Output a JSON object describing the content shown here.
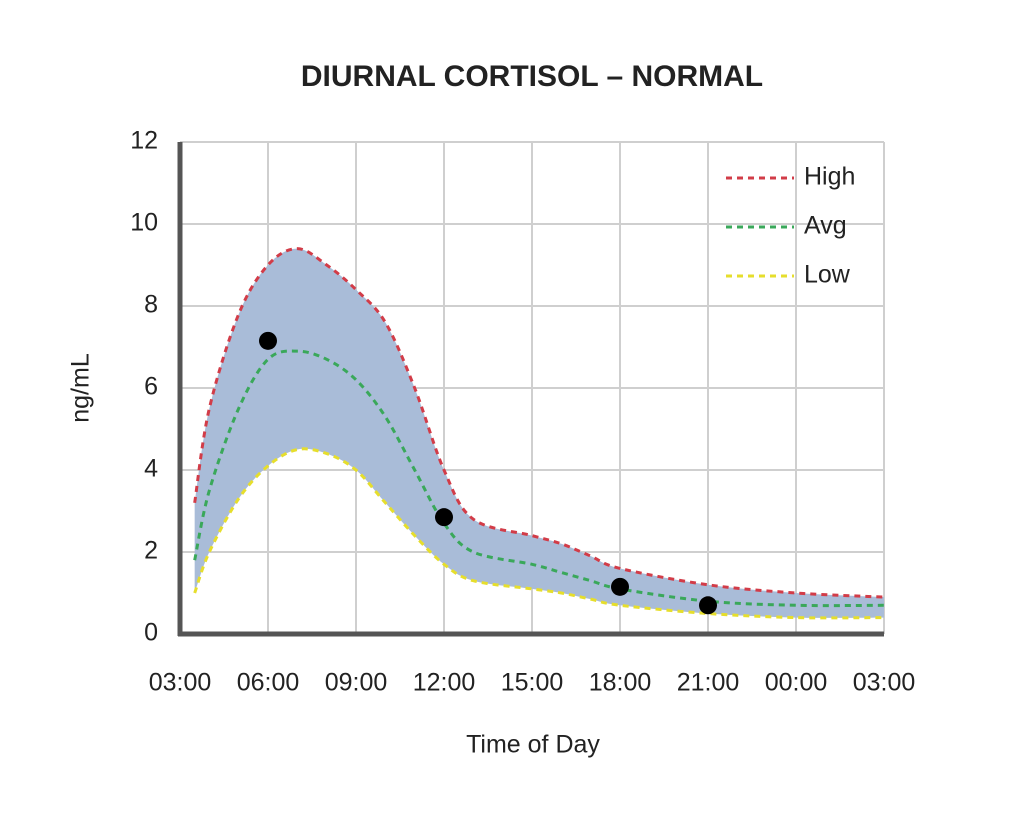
{
  "chart_data": {
    "type": "line",
    "title": "DIURNAL CORTISOL – NORMAL",
    "x_label": "Time of Day",
    "y_label": "ng/mL",
    "x": [
      3.5,
      4,
      5,
      6,
      7,
      8,
      9,
      10,
      11,
      12,
      13,
      15,
      16,
      17,
      18,
      21,
      24,
      27
    ],
    "series": [
      {
        "name": "High",
        "color": "#d23c48",
        "values": [
          3.2,
          5.5,
          7.8,
          9.0,
          9.4,
          9.0,
          8.4,
          7.6,
          6.0,
          4.0,
          2.8,
          2.4,
          2.2,
          1.9,
          1.6,
          1.2,
          1.0,
          0.9
        ]
      },
      {
        "name": "Avg",
        "color": "#3aa85a",
        "values": [
          1.8,
          3.5,
          5.5,
          6.7,
          6.9,
          6.7,
          6.2,
          5.3,
          4.0,
          2.7,
          2.0,
          1.7,
          1.5,
          1.3,
          1.1,
          0.8,
          0.7,
          0.7
        ]
      },
      {
        "name": "Low",
        "color": "#e6de2c",
        "values": [
          1.0,
          2.0,
          3.3,
          4.1,
          4.5,
          4.4,
          4.0,
          3.2,
          2.4,
          1.7,
          1.3,
          1.1,
          1.0,
          0.85,
          0.7,
          0.5,
          0.4,
          0.4
        ]
      }
    ],
    "band_color": "#a9bcd8",
    "points": {
      "x": [
        6,
        12,
        18,
        21
      ],
      "values": [
        7.15,
        2.85,
        1.15,
        0.7
      ],
      "color": "#000000"
    },
    "xlim": [
      3,
      27
    ],
    "xticks": [
      {
        "value": 3,
        "label": "03:00"
      },
      {
        "value": 6,
        "label": "06:00"
      },
      {
        "value": 9,
        "label": "09:00"
      },
      {
        "value": 12,
        "label": "12:00"
      },
      {
        "value": 15,
        "label": "15:00"
      },
      {
        "value": 18,
        "label": "18:00"
      },
      {
        "value": 21,
        "label": "21:00"
      },
      {
        "value": 24,
        "label": "00:00"
      },
      {
        "value": 27,
        "label": "03:00"
      }
    ],
    "ylim": [
      0,
      12
    ],
    "yticks": [
      0,
      2,
      4,
      6,
      8,
      10,
      12
    ],
    "grid": true,
    "legend": "top-right"
  }
}
